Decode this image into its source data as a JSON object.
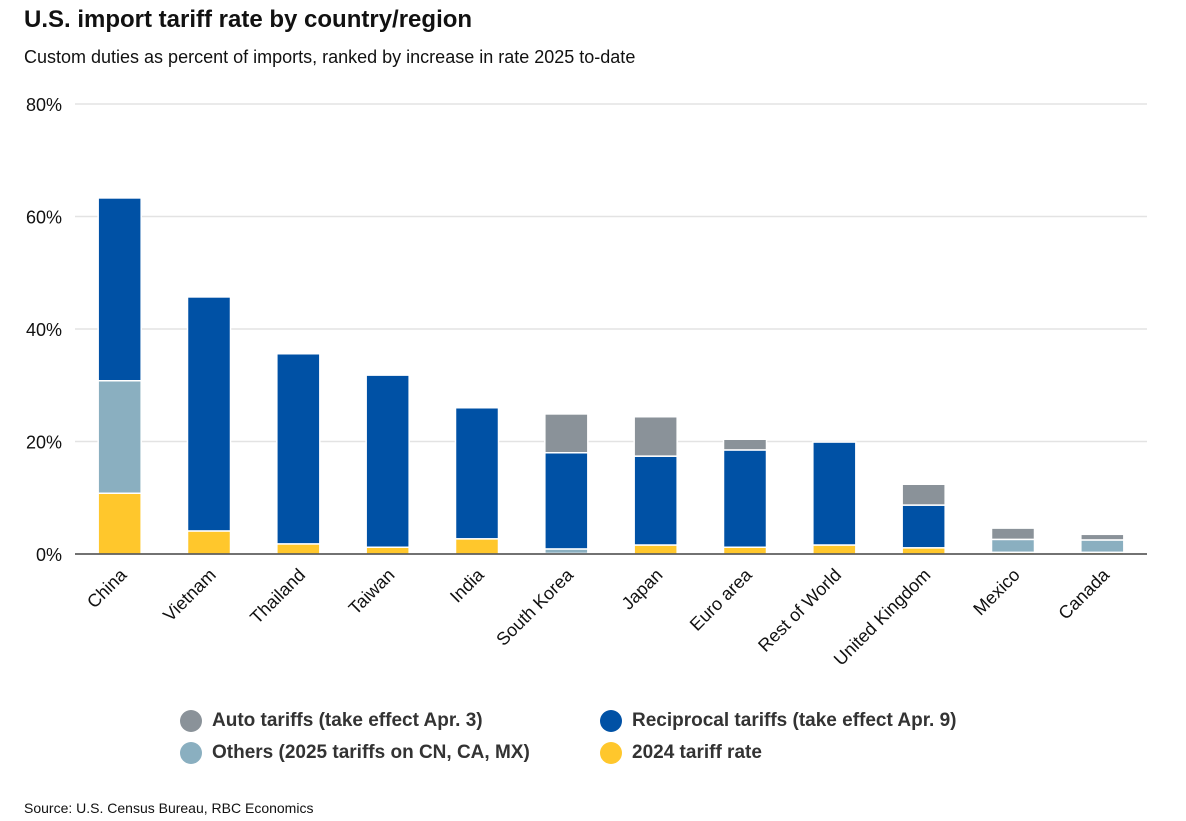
{
  "chart_data": {
    "type": "bar",
    "stacked": true,
    "title": "U.S. import tariff rate by country/region",
    "subtitle": "Custom duties as percent of imports, ranked by increase in rate 2025 to-date",
    "source": "Source: U.S. Census Bureau, RBC Economics",
    "ylim": [
      0,
      80
    ],
    "yticks": [
      "0%",
      "20%",
      "40%",
      "60%",
      "80%"
    ],
    "ytick_values": [
      0,
      20,
      40,
      60,
      80
    ],
    "grid": true,
    "legend_position": "bottom",
    "categories": [
      "China",
      "Vietnam",
      "Thailand",
      "Taiwan",
      "India",
      "South Korea",
      "Japan",
      "Euro area",
      "Rest of World",
      "United Kingdom",
      "Mexico",
      "Canada"
    ],
    "series": [
      {
        "name": "2024 tariff rate",
        "color": "#ffc72c",
        "values": [
          10.8,
          4.1,
          1.8,
          1.2,
          2.7,
          0.1,
          1.6,
          1.2,
          1.6,
          1.1,
          0.3,
          0.3
        ]
      },
      {
        "name": "Others (2025 tariffs on CN, CA, MX)",
        "color": "#8aafc0",
        "values": [
          20.0,
          0,
          0,
          0,
          0,
          0.8,
          0,
          0,
          0,
          0,
          2.3,
          2.2
        ]
      },
      {
        "name": "Reciprocal tariffs (take effect Apr. 9)",
        "color": "#0051a5",
        "values": [
          32.5,
          41.6,
          33.8,
          30.6,
          23.3,
          17.1,
          15.8,
          17.3,
          18.3,
          7.6,
          0,
          0
        ]
      },
      {
        "name": "Auto tariffs (take effect Apr. 3)",
        "color": "#8a9299",
        "values": [
          0,
          0,
          0,
          0,
          0,
          6.9,
          7.0,
          1.9,
          0,
          3.7,
          2.0,
          1.0
        ]
      }
    ],
    "legend_order": [
      3,
      2,
      1,
      0
    ]
  }
}
